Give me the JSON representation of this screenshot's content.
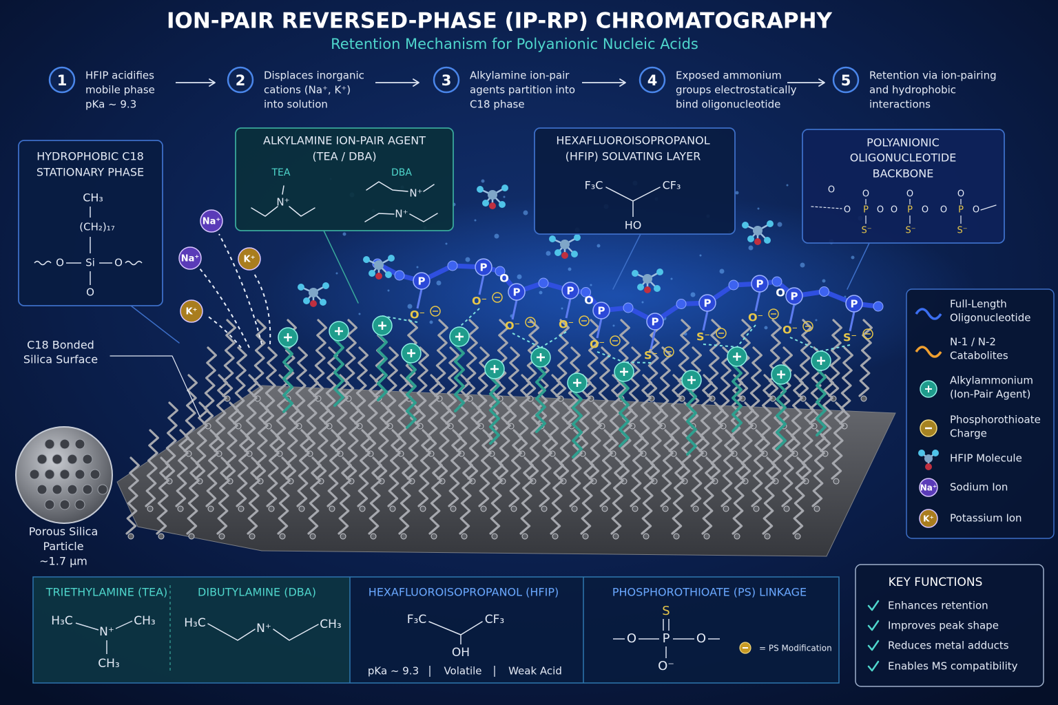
{
  "header": {
    "title": "ION-PAIR REVERSED-PHASE (IP-RP) CHROMATOGRAPHY",
    "subtitle": "Retention Mechanism for Polyanionic Nucleic Acids"
  },
  "steps": [
    {
      "number": "1",
      "lines": [
        "HFIP acidifies",
        "mobile phase",
        "pKa ~ 9.3"
      ]
    },
    {
      "number": "2",
      "lines": [
        "Displaces inorganic",
        "cations (Na⁺, K⁺)",
        "into solution"
      ]
    },
    {
      "number": "3",
      "lines": [
        "Alkylamine ion-pair",
        "agents partition into",
        "C18 phase"
      ]
    },
    {
      "number": "4",
      "lines": [
        "Exposed ammonium",
        "groups electrostatically",
        "bind oligonucleotide"
      ]
    },
    {
      "number": "5",
      "lines": [
        "Retention via ion-pairing",
        "and hydrophobic",
        "interactions"
      ]
    }
  ],
  "callouts": {
    "stationary_phase": {
      "title": [
        "HYDROPHOBIC C18",
        "STATIONARY PHASE"
      ],
      "atoms": [
        "CH₃",
        "(CH₂)₁₇",
        "O",
        "Si",
        "O",
        "O"
      ]
    },
    "ion_pair_agent": {
      "title": [
        "ALKYLAMINE ION-PAIR AGENT",
        "(TEA / DBA)"
      ],
      "tea": {
        "label": "TEA",
        "atoms": [
          "N⁺"
        ]
      },
      "dba": {
        "label": "DBA",
        "atoms": [
          "N⁺",
          "N⁺"
        ]
      }
    },
    "hfip_layer": {
      "title": [
        "HEXAFLUOROISOPROPANOL",
        "(HFIP) SOLVATING LAYER"
      ],
      "atoms": [
        "F₃C",
        "CF₃",
        "HO"
      ]
    },
    "backbone": {
      "title": [
        "POLYANIONIC",
        "OLIGONUCLEOTIDE",
        "BACKBONE"
      ],
      "atoms": [
        "O",
        "O",
        "O",
        "O",
        "O",
        "P",
        "O",
        "O",
        "P",
        "O",
        "O",
        "P",
        "O",
        "S⁻",
        "S⁻",
        "S⁻"
      ]
    }
  },
  "surface_label": [
    "C18 Bonded",
    "Silica Surface"
  ],
  "particle_label": [
    "Porous Silica",
    "Particle",
    "~1.7 µm"
  ],
  "ions": [
    "Na⁺",
    "Na⁺",
    "K⁺",
    "K⁺"
  ],
  "oligonucleotide": {
    "phosphorus": [
      "P",
      "P",
      "P",
      "P",
      "P",
      "P",
      "P",
      "P",
      "P",
      "P"
    ],
    "bridging_oxygen": [
      "O",
      "O",
      "O"
    ],
    "anions": [
      "O⁻",
      "O⁻",
      "O⁻",
      "O⁻",
      "O⁻",
      "S⁻",
      "S⁻",
      "O⁻",
      "O⁻",
      "S⁻"
    ]
  },
  "legend": [
    {
      "lines": [
        "Full-Length",
        "Oligonucleotide"
      ]
    },
    {
      "lines": [
        "N-1 / N-2",
        "Catabolites"
      ]
    },
    {
      "lines": [
        "Alkylammonium",
        "(Ion-Pair Agent)"
      ]
    },
    {
      "lines": [
        "Phosphorothioate",
        "Charge"
      ]
    },
    {
      "lines": [
        "HFIP Molecule"
      ]
    },
    {
      "icon": "Na⁺",
      "lines": [
        "Sodium Ion"
      ]
    },
    {
      "icon": "K⁺",
      "lines": [
        "Potassium Ion"
      ]
    }
  ],
  "panels": {
    "tea": {
      "title": "TRIETHYLAMINE (TEA)",
      "atoms": [
        "H₃C",
        "N⁺",
        "CH₃",
        "CH₃"
      ]
    },
    "dba": {
      "title": "DIBUTYLAMINE (DBA)",
      "atoms": [
        "H₃C",
        "N⁺",
        "CH₃"
      ]
    },
    "hfip": {
      "title": "HEXAFLUOROISOPROPANOL (HFIP)",
      "atoms": [
        "F₃C",
        "CF₃",
        "OH"
      ],
      "properties": [
        "pKa ~ 9.3",
        "Volatile",
        "Weak Acid"
      ]
    },
    "ps": {
      "title": "PHOSPHOROTHIOATE (PS) LINKAGE",
      "atoms": [
        "S",
        "O",
        "P",
        "O",
        "O⁻"
      ],
      "note": "= PS Modification"
    }
  },
  "key_functions": {
    "title": "KEY FUNCTIONS",
    "items": [
      "Enhances retention",
      "Improves peak shape",
      "Reduces metal adducts",
      "Enables MS compatibility"
    ]
  }
}
